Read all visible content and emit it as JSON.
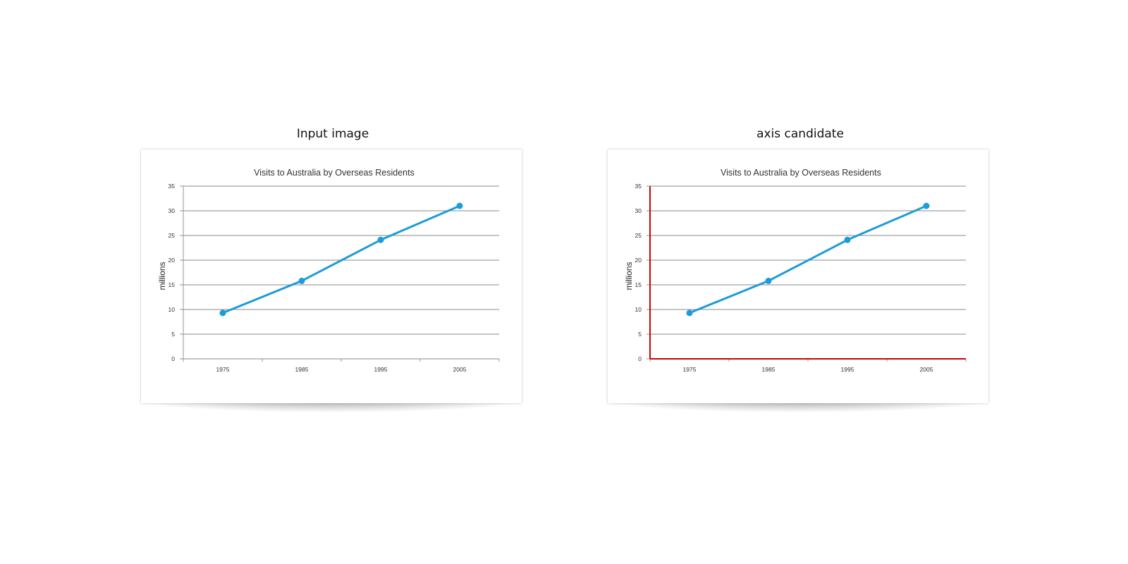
{
  "panels": [
    {
      "heading": "Input image"
    },
    {
      "heading": "axis candidate"
    }
  ],
  "colors": {
    "line": "#1e9cd7",
    "axis_highlight": "#cc0000",
    "grid": "#888888"
  },
  "chart_data": [
    {
      "type": "line",
      "title": "Visits to Australia by Overseas Residents",
      "xlabel": "",
      "ylabel": "millions",
      "categories": [
        "1975",
        "1985",
        "1995",
        "2005"
      ],
      "series": [
        {
          "values": [
            9.3,
            15.8,
            24.1,
            31.0
          ]
        }
      ],
      "ylim": [
        0,
        35
      ],
      "yticks": [
        "0",
        "5",
        "10",
        "15",
        "20",
        "25",
        "30",
        "35"
      ],
      "grid": true,
      "axis_highlight": false
    },
    {
      "type": "line",
      "title": "Visits to Australia by Overseas Residents",
      "xlabel": "",
      "ylabel": "millions",
      "categories": [
        "1975",
        "1985",
        "1995",
        "2005"
      ],
      "series": [
        {
          "values": [
            9.3,
            15.8,
            24.1,
            31.0
          ]
        }
      ],
      "ylim": [
        0,
        35
      ],
      "yticks": [
        "0",
        "5",
        "10",
        "15",
        "20",
        "25",
        "30",
        "35"
      ],
      "grid": true,
      "axis_highlight": true
    }
  ]
}
